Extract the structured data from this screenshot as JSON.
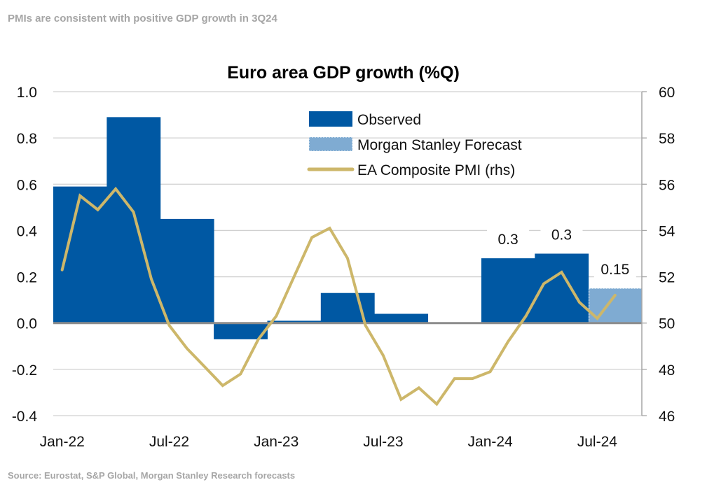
{
  "header": {
    "subtitle": "PMIs are consistent with positive GDP growth in 3Q24"
  },
  "footer": {
    "source": "Source: Eurostat, S&P Global, Morgan Stanley Research forecasts"
  },
  "colors": {
    "observed": "#0058A3",
    "forecast": "#7FABD2",
    "pmi": "#CDB76A",
    "grid": "#d0d0d0",
    "zero_line": "#8c8c8c",
    "axis": "#a6a6a6"
  },
  "chart_data": {
    "type": "bar",
    "title": "Euro area GDP growth (%Q)",
    "xlabel": "",
    "ylabel": "",
    "ylabel_right": "",
    "ylim": [
      -0.4,
      1.0
    ],
    "ylim_right": [
      46,
      60
    ],
    "yticks": [
      "1.0",
      "0.8",
      "0.6",
      "0.4",
      "0.2",
      "0.0",
      "-0.2",
      "-0.4"
    ],
    "yticks_right": [
      "60",
      "58",
      "56",
      "54",
      "52",
      "50",
      "48",
      "46"
    ],
    "xticks": [
      "Jan-22",
      "Jul-22",
      "Jan-23",
      "Jul-23",
      "Jan-24",
      "Jul-24"
    ],
    "grid": true,
    "legend_position": "top-center",
    "legend": [
      "Observed",
      "Morgan Stanley Forecast",
      "EA Composite PMI (rhs)"
    ],
    "gdp_quarters": [
      "1Q22",
      "2Q22",
      "3Q22",
      "4Q22",
      "1Q23",
      "2Q23",
      "3Q23",
      "4Q23",
      "1Q24",
      "2Q24",
      "3Q24"
    ],
    "series": [
      {
        "name": "Observed",
        "type": "bar",
        "values": [
          0.59,
          0.89,
          0.45,
          -0.07,
          0.01,
          0.13,
          0.04,
          0.0,
          0.28,
          0.3,
          null
        ]
      },
      {
        "name": "Morgan Stanley Forecast",
        "type": "bar",
        "values": [
          null,
          null,
          null,
          null,
          null,
          null,
          null,
          null,
          null,
          null,
          0.15
        ]
      },
      {
        "name": "EA Composite PMI (rhs)",
        "type": "line",
        "axis": "right",
        "months": [
          "Jan-22",
          "Feb-22",
          "Mar-22",
          "Apr-22",
          "May-22",
          "Jun-22",
          "Jul-22",
          "Aug-22",
          "Sep-22",
          "Oct-22",
          "Nov-22",
          "Dec-22",
          "Jan-23",
          "Feb-23",
          "Mar-23",
          "Apr-23",
          "May-23",
          "Jun-23",
          "Jul-23",
          "Aug-23",
          "Sep-23",
          "Oct-23",
          "Nov-23",
          "Dec-23",
          "Jan-24",
          "Feb-24",
          "Mar-24",
          "Apr-24",
          "May-24",
          "Jun-24",
          "Jul-24",
          "Aug-24"
        ],
        "values": [
          52.3,
          55.5,
          54.9,
          55.8,
          54.8,
          51.9,
          49.9,
          48.9,
          48.1,
          47.3,
          47.8,
          49.3,
          50.3,
          52.0,
          53.7,
          54.1,
          52.8,
          49.9,
          48.6,
          46.7,
          47.2,
          46.5,
          47.6,
          47.6,
          47.9,
          49.2,
          50.3,
          51.7,
          52.2,
          50.9,
          50.2,
          51.2
        ]
      }
    ],
    "data_labels": [
      {
        "quarter": "1Q24",
        "text": "0.3"
      },
      {
        "quarter": "2Q24",
        "text": "0.3"
      },
      {
        "quarter": "3Q24",
        "text": "0.15"
      }
    ]
  }
}
